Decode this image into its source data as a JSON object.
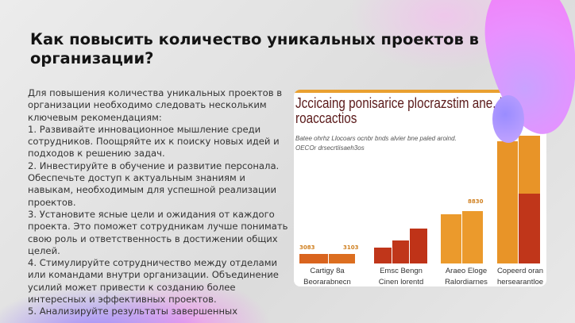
{
  "slide": {
    "title": "Как повысить количество уникальных проектов в организации?",
    "paragraphs": [
      "Для повышения количества уникальных проектов в организации необходимо следовать нескольким ключевым рекомендациям:",
      "1. Развивайте инновационное мышление среди сотрудников. Поощряйте их к поиску новых идей и подходов к решению задач.",
      "2. Инвестируйте в обучение и развитие персонала. Обеспечьте доступ к актуальным знаниям и навыкам, необходимым для успешной реализации проектов.",
      "3. Установите ясные цели и ожидания от каждого проекта. Это поможет сотрудникам лучше понимать свою роль и ответственность в достижении общих целей.",
      "4. Стимулируйте сотрудничество между отделами или командами внутри организации. Объединение усилий может привести к созданию более интересных и эффективных проектов.",
      "5. Анализируйте результаты завершенных"
    ]
  },
  "image": {
    "title_line1": "Jccicaing ponisarice plocrazstim ane, lo",
    "title_line2": "roaccactios",
    "subtitle1": "Batee ohrhz Llocoars ocnbr bnds alvier bne paled aroind.",
    "subtitle2": "OECOr drsecrtiisaeh3os",
    "value_labels": [
      "3083",
      "3103",
      "8830"
    ],
    "groups": [
      {
        "label1": "Cartigy 8a",
        "label2": "Beorarabnecn"
      },
      {
        "label1": "Emsc Bengn",
        "label2": "Cinen lorentd"
      },
      {
        "label1": "Araeo Eloge",
        "label2": "Ralordiarnes"
      },
      {
        "label1": "Copeerd oran",
        "label2": "hersearantloe"
      }
    ],
    "colors": {
      "orange": "#e89428",
      "red": "#c0361a",
      "dark_orange": "#d9641e"
    }
  }
}
